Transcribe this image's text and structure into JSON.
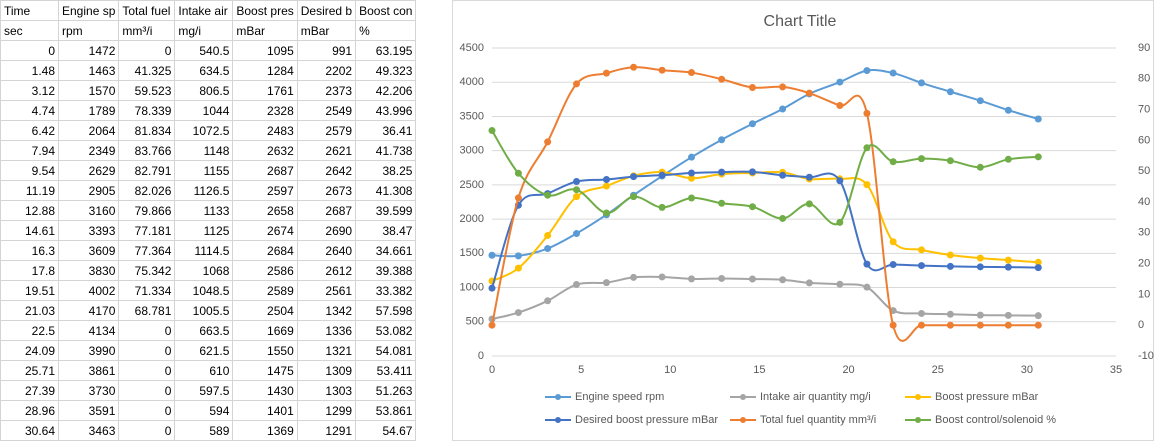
{
  "table": {
    "headers": [
      "Time",
      "Engine sp",
      "Total fuel",
      "Intake air",
      "Boost pres",
      "Desired b",
      "Boost con"
    ],
    "units": [
      "sec",
      "rpm",
      "mm³/i",
      "mg/i",
      "mBar",
      "mBar",
      "%"
    ]
  },
  "chart_data": {
    "type": "line",
    "smooth": true,
    "markers": true,
    "title": "Chart Title",
    "x": [
      0,
      1.48,
      3.12,
      4.74,
      6.42,
      7.94,
      9.54,
      11.19,
      12.88,
      14.61,
      16.3,
      17.8,
      19.51,
      21.03,
      22.5,
      24.09,
      25.71,
      27.39,
      28.96,
      30.64
    ],
    "xlim": [
      0,
      35
    ],
    "xticks": [
      0,
      5,
      10,
      15,
      20,
      25,
      30,
      35
    ],
    "ylim": [
      0,
      4500
    ],
    "yticks": [
      0,
      500,
      1000,
      1500,
      2000,
      2500,
      3000,
      3500,
      4000,
      4500
    ],
    "y2lim": [
      -10,
      90
    ],
    "y2ticks": [
      -10,
      0,
      10,
      20,
      30,
      40,
      50,
      60,
      70,
      80,
      90
    ],
    "grid": true,
    "legend": "bottom",
    "series": [
      {
        "name": "Engine speed rpm",
        "color": "#5b9bd5",
        "values": [
          1472,
          1463,
          1570,
          1789,
          2064,
          2349,
          2629,
          2905,
          3160,
          3393,
          3609,
          3830,
          4002,
          4170,
          4134,
          3990,
          3861,
          3730,
          3591,
          3463
        ]
      },
      {
        "name": "Intake air quantity mg/i",
        "color": "#a5a5a5",
        "values": [
          540.5,
          634.5,
          806.5,
          1044,
          1072.5,
          1148,
          1155,
          1126.5,
          1133,
          1125,
          1114.5,
          1068,
          1048.5,
          1005.5,
          663.5,
          621.5,
          610,
          597.5,
          594,
          589
        ]
      },
      {
        "name": "Boost pressure mBar",
        "color": "#ffc000",
        "values": [
          1095,
          1284,
          1761,
          2328,
          2483,
          2632,
          2687,
          2597,
          2658,
          2674,
          2684,
          2586,
          2589,
          2504,
          1669,
          1550,
          1475,
          1430,
          1401,
          1369
        ]
      },
      {
        "name": "Desired boost pressure mBar",
        "color": "#4472c4",
        "values": [
          991,
          2202,
          2373,
          2549,
          2579,
          2621,
          2642,
          2673,
          2687,
          2690,
          2640,
          2612,
          2561,
          1342,
          1336,
          1321,
          1309,
          1303,
          1299,
          1291
        ]
      },
      {
        "name": "Total fuel quantity mm³/i",
        "color": "#ed7d31",
        "axis": "y2",
        "values": [
          0,
          41.325,
          59.523,
          78.339,
          81.834,
          83.766,
          82.791,
          82.026,
          79.866,
          77.181,
          77.364,
          75.342,
          71.334,
          68.781,
          0,
          0,
          0,
          0,
          0,
          0
        ]
      },
      {
        "name": "Boost control/solenoid %",
        "color": "#70ad47",
        "axis": "y2",
        "values": [
          63.195,
          49.323,
          42.206,
          43.996,
          36.41,
          41.738,
          38.25,
          41.308,
          39.599,
          38.47,
          34.661,
          39.388,
          33.382,
          57.598,
          53.082,
          54.081,
          53.411,
          51.263,
          53.861,
          54.67
        ]
      }
    ]
  }
}
